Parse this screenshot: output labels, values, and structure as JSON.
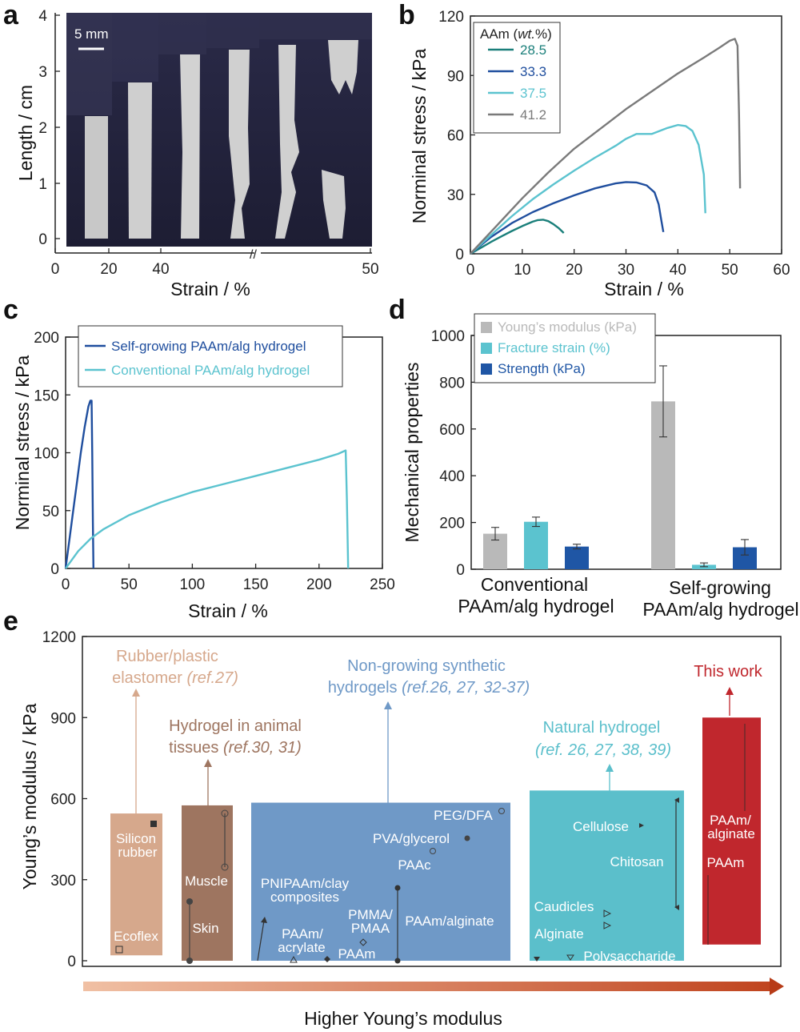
{
  "panel_labels": [
    "a",
    "b",
    "c",
    "d",
    "e"
  ],
  "colors": {
    "teal_dark": "#1a7f7a",
    "blue_dark": "#1f4e9e",
    "cyan": "#5bc3cf",
    "gray": "#7a7a7a",
    "bar_gray": "#b9b9b9",
    "bar_cyan": "#5bc3cf",
    "bar_blue": "#1f56a5",
    "rubber": "#d6a88c",
    "tissue": "#9e7560",
    "synthetic": "#6f99c7",
    "natural": "#5bbfcb",
    "thiswork": "#c0272d",
    "arrow": "#c8552f"
  },
  "panel_a": {
    "scale_bar_text": "5 mm",
    "xlabel": "Strain / %",
    "ylabel": "Length / cm",
    "xticks": [
      "0",
      "20",
      "40",
      "50"
    ],
    "yticks": [
      "0",
      "1",
      "2",
      "3",
      "4"
    ],
    "axis_break_symbol": "//"
  },
  "chart_data": [
    {
      "panel": "b",
      "type": "line",
      "xlabel": "Strain / %",
      "ylabel": "Norminal stress / kPa",
      "xlim": [
        0,
        60
      ],
      "ylim": [
        0,
        120
      ],
      "xticks": [
        0,
        10,
        20,
        30,
        40,
        50,
        60
      ],
      "yticks": [
        0,
        30,
        60,
        90,
        120
      ],
      "legend_title": "AAm (wt.%)",
      "legend_title_main": "AAm (",
      "legend_title_italic": "wt.",
      "legend_title_end": "%)",
      "legend_position": "top-left",
      "series": [
        {
          "name": "28.5",
          "color": "#1a7f7a",
          "x": [
            0,
            2,
            4,
            6,
            8,
            10,
            12,
            13,
            14,
            15,
            16,
            17,
            18
          ],
          "y": [
            0,
            3,
            6,
            8.8,
            11.5,
            14,
            16.2,
            17,
            17.2,
            16.5,
            15,
            13,
            10.5
          ]
        },
        {
          "name": "33.3",
          "color": "#1f4e9e",
          "x": [
            0,
            4,
            8,
            12,
            16,
            20,
            24,
            28,
            30,
            32,
            34,
            35.5,
            36.3,
            36.8,
            37.2
          ],
          "y": [
            0,
            8.5,
            15.5,
            21,
            25.5,
            29.5,
            33,
            35.5,
            36.2,
            36,
            34.5,
            31,
            25,
            17,
            11
          ]
        },
        {
          "name": "37.5",
          "color": "#5bc3cf",
          "x": [
            0,
            4,
            8,
            12,
            16,
            20,
            24,
            28,
            30,
            32,
            35,
            38,
            40,
            41.5,
            42.8,
            44,
            45,
            45.3
          ],
          "y": [
            0,
            9.5,
            19,
            27.5,
            35,
            42,
            48.5,
            54.5,
            58,
            60.5,
            60.5,
            63.5,
            65,
            64.5,
            62,
            55,
            40,
            20.5
          ]
        },
        {
          "name": "41.2",
          "color": "#7a7a7a",
          "x": [
            0,
            5,
            10,
            15,
            20,
            25,
            30,
            35,
            40,
            45,
            48,
            50,
            51,
            51.5,
            51.8,
            52
          ],
          "y": [
            0,
            14,
            28,
            41,
            53,
            63,
            73,
            82,
            91,
            99,
            104,
            107.5,
            108.5,
            105,
            70,
            33
          ]
        }
      ]
    },
    {
      "panel": "c",
      "type": "line",
      "xlabel": "Strain / %",
      "ylabel": "Norminal stress / kPa",
      "xlim": [
        0,
        250
      ],
      "ylim": [
        0,
        200
      ],
      "xticks": [
        0,
        50,
        100,
        150,
        200,
        250
      ],
      "yticks": [
        0,
        50,
        100,
        150,
        200
      ],
      "legend_position": "top",
      "series": [
        {
          "name": "Self-growing PAAm/alg hydrogel",
          "color": "#1f4e9e",
          "x": [
            0,
            3,
            6,
            9,
            12,
            15,
            18,
            19.5,
            20.5,
            21,
            21.5,
            22
          ],
          "y": [
            0,
            25,
            50,
            75,
            100,
            122,
            140,
            145,
            145,
            100,
            40,
            0
          ]
        },
        {
          "name": "Conventional PAAm/alg hydrogel",
          "color": "#5bc3cf",
          "x": [
            0,
            10,
            20,
            30,
            50,
            75,
            100,
            125,
            150,
            175,
            200,
            215,
            221,
            222,
            223
          ],
          "y": [
            0,
            15,
            26,
            34,
            46,
            57,
            66,
            73,
            80,
            87,
            94,
            99,
            102,
            60,
            0
          ]
        }
      ]
    },
    {
      "panel": "d",
      "type": "bar",
      "ylabel": "Mechanical properties",
      "ylim": [
        0,
        1000
      ],
      "yticks": [
        0,
        200,
        400,
        600,
        800,
        1000
      ],
      "categories": [
        "Conventional PAAm/alg hydrogel",
        "Self-growing PAAm/alg hydrogel"
      ],
      "category_lines": [
        [
          "Conventional",
          "PAAm/alg hydrogel"
        ],
        [
          "Self-growing",
          "PAAm/alg hydrogel"
        ]
      ],
      "legend_position": "top-left",
      "series": [
        {
          "name": "Young’s modulus (kPa)",
          "color": "#b9b9b9",
          "values": [
            152,
            718
          ],
          "errors": [
            27,
            152
          ]
        },
        {
          "name": "Fracture strain (%)",
          "color": "#5bc3cf",
          "values": [
            203,
            19
          ],
          "errors": [
            20,
            8
          ]
        },
        {
          "name": "Strength (kPa)",
          "color": "#1f56a5",
          "values": [
            97,
            94
          ],
          "errors": [
            10,
            33
          ]
        }
      ]
    },
    {
      "panel": "e",
      "type": "bar",
      "ylabel": "Young’s modulus / kPa",
      "ylim": [
        0,
        1200
      ],
      "yticks": [
        0,
        300,
        600,
        900,
        1200
      ],
      "xlabel": "Higher Young’s modulus",
      "categories": [
        "Rubber/plastic elastomer",
        "Hydrogel in animal tissues",
        "Non-growing synthetic hydrogels",
        "Natural hydrogel",
        "This work"
      ],
      "ranges": [
        {
          "category": "Rubber/plastic elastomer",
          "low": 20,
          "high": 545,
          "color": "#d6a88c",
          "title_lines": [
            "Rubber/plastic",
            "elastomer"
          ],
          "ref": "(ref.27)",
          "items": [
            {
              "label_lines": [
                "Silicon",
                "rubber"
              ],
              "value": 520
            },
            {
              "label_lines": [
                "Ecoflex"
              ],
              "value": 35
            }
          ]
        },
        {
          "category": "Hydrogel in animal tissues",
          "low": 0,
          "high": 575,
          "color": "#9e7560",
          "title_lines": [
            "Hydrogel in animal",
            "tissues"
          ],
          "ref": "(ref.30, 31)",
          "items": [
            {
              "label_lines": [
                "Muscle"
              ],
              "value_range": [
                350,
                550
              ]
            },
            {
              "label_lines": [
                "Skin"
              ],
              "value_range": [
                5,
                230
              ]
            }
          ]
        },
        {
          "category": "Non-growing synthetic hydrogels",
          "low": 0,
          "high": 585,
          "color": "#6f99c7",
          "title_lines": [
            "Non-growing synthetic",
            "hydrogels"
          ],
          "ref": "(ref.26, 27, 32-37)",
          "items": [
            {
              "label_lines": [
                "PEG/DFA"
              ],
              "value": 560
            },
            {
              "label_lines": [
                "PVA/glycerol"
              ],
              "value": 460
            },
            {
              "label_lines": [
                "PAAc"
              ],
              "value": 410
            },
            {
              "label_lines": [
                "PNIPAAm/clay",
                "composites"
              ],
              "value_range": [
                5,
                170
              ]
            },
            {
              "label_lines": [
                "PMMA/",
                "PMAA"
              ],
              "value": 80
            },
            {
              "label_lines": [
                "PAAm/alginate"
              ],
              "value_range": [
                5,
                285
              ]
            },
            {
              "label_lines": [
                "PAAm/",
                "acrylate"
              ],
              "value": 20
            },
            {
              "label_lines": [
                "PAAm"
              ],
              "value": 20
            }
          ]
        },
        {
          "category": "Natural hydrogel",
          "low": 0,
          "high": 630,
          "color": "#5bbfcb",
          "title_lines": [
            "Natural hydrogel"
          ],
          "ref": "(ref. 26, 27, 38, 39)",
          "items": [
            {
              "label_lines": [
                "Cellulose"
              ],
              "value": 500
            },
            {
              "label_lines": [
                "Chitosan"
              ],
              "value_range": [
                200,
                590
              ]
            },
            {
              "label_lines": [
                "Caudicles"
              ],
              "value": 180
            },
            {
              "label_lines": [
                "Alginate"
              ],
              "value": 140
            },
            {
              "label_lines": [
                "Polysaccharide"
              ],
              "value_range": [
                10,
                20
              ]
            }
          ]
        },
        {
          "category": "This work",
          "low": 60,
          "high": 900,
          "color": "#c0272d",
          "title_lines": [
            "This work"
          ],
          "ref": "",
          "items": [
            {
              "label_lines": [
                "PAAm/",
                "alginate"
              ],
              "value_range": [
                560,
                880
              ]
            },
            {
              "label_lines": [
                "PAAm"
              ],
              "value_range": [
                80,
                330
              ]
            }
          ]
        }
      ]
    }
  ]
}
